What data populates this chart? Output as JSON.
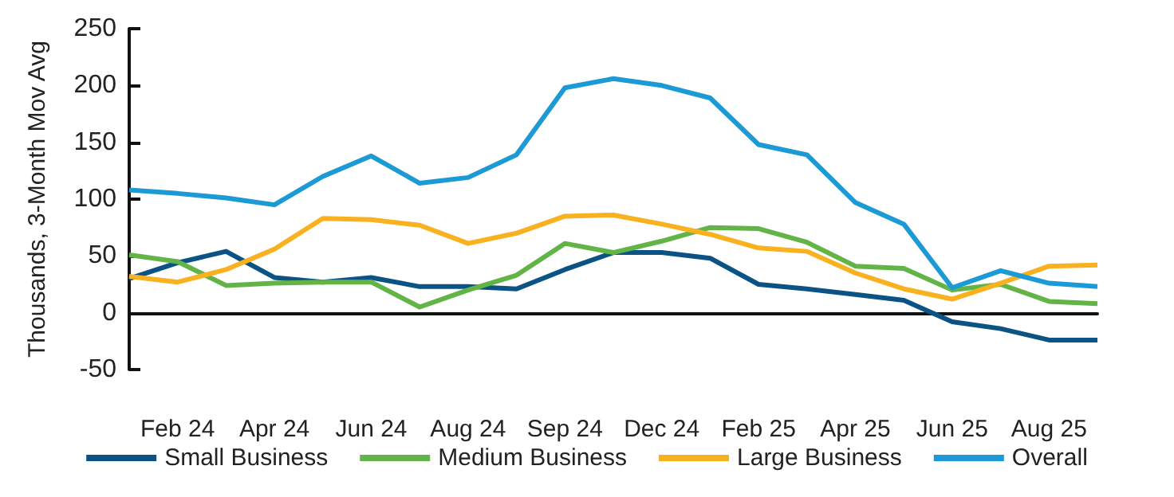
{
  "chart_data": {
    "type": "line",
    "ylabel": "Thousands, 3-Month Mov Avg",
    "categories": [
      null,
      "Feb 24",
      null,
      "Apr 24",
      null,
      "Jun 24",
      null,
      "Aug 24",
      null,
      "Sep 24",
      null,
      "Dec 24",
      null,
      "Feb 25",
      null,
      "Apr 25",
      null,
      "Jun 25",
      null,
      "Aug 25",
      null
    ],
    "series": [
      {
        "name": "Small Business",
        "color": "#0b5285",
        "values": [
          30,
          44,
          54,
          31,
          27,
          31,
          23,
          23,
          21,
          38,
          53,
          53,
          48,
          25,
          21,
          16,
          11,
          -8,
          -14,
          -24,
          -24
        ]
      },
      {
        "name": "Medium Business",
        "color": "#62b447",
        "values": [
          51,
          45,
          24,
          26,
          27,
          27,
          5,
          20,
          33,
          61,
          53,
          63,
          75,
          74,
          62,
          41,
          39,
          20,
          25,
          10,
          8
        ]
      },
      {
        "name": "Large Business",
        "color": "#f9b11f",
        "values": [
          32,
          27,
          38,
          56,
          83,
          82,
          77,
          61,
          70,
          85,
          86,
          78,
          69,
          57,
          54,
          35,
          21,
          12,
          26,
          41,
          42
        ]
      },
      {
        "name": "Overall",
        "color": "#1b9ad6",
        "values": [
          108,
          105,
          101,
          95,
          120,
          138,
          114,
          119,
          139,
          198,
          206,
          200,
          189,
          148,
          139,
          97,
          78,
          22,
          37,
          26,
          23
        ]
      }
    ],
    "ylim": [
      -50,
      250
    ],
    "yticks": [
      -50,
      0,
      50,
      100,
      150,
      200,
      250
    ],
    "legend": "bottom",
    "marker": "none",
    "line_style": "solid"
  }
}
